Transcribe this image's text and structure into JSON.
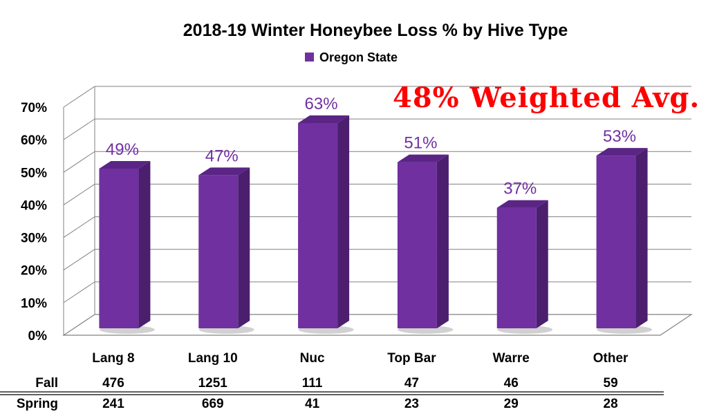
{
  "chart_data": {
    "type": "bar",
    "title": "2018-19 Winter Honeybee Loss % by Hive Type",
    "legend": {
      "entries": [
        "Oregon State"
      ],
      "placement": "top-center"
    },
    "categories": [
      "Lang 8",
      "Lang 10",
      "Nuc",
      "Top Bar",
      "Warre",
      "Other"
    ],
    "series": [
      {
        "name": "Oregon State",
        "values": [
          49,
          47,
          63,
          51,
          37,
          53
        ],
        "color": "#7030a0"
      }
    ],
    "data_labels": [
      "49%",
      "47%",
      "63%",
      "51%",
      "37%",
      "53%"
    ],
    "y_ticks": [
      "0%",
      "10%",
      "20%",
      "30%",
      "40%",
      "50%",
      "60%",
      "70%"
    ],
    "ylim": [
      0,
      70
    ],
    "grid": true,
    "annotation": "48% Weighted Avg.",
    "table": {
      "rows": [
        {
          "label": "Fall",
          "values": [
            "476",
            "1251",
            "111",
            "47",
            "46",
            "59"
          ]
        },
        {
          "label": "Spring",
          "values": [
            "241",
            "669",
            "41",
            "23",
            "29",
            "28"
          ]
        }
      ]
    }
  },
  "colors": {
    "bar_front": "#7030a0",
    "bar_side": "#4b1f6e",
    "bar_top": "#5a2585",
    "data_label": "#7030a0",
    "annotation": "#ff0000",
    "grid": "#808080"
  }
}
